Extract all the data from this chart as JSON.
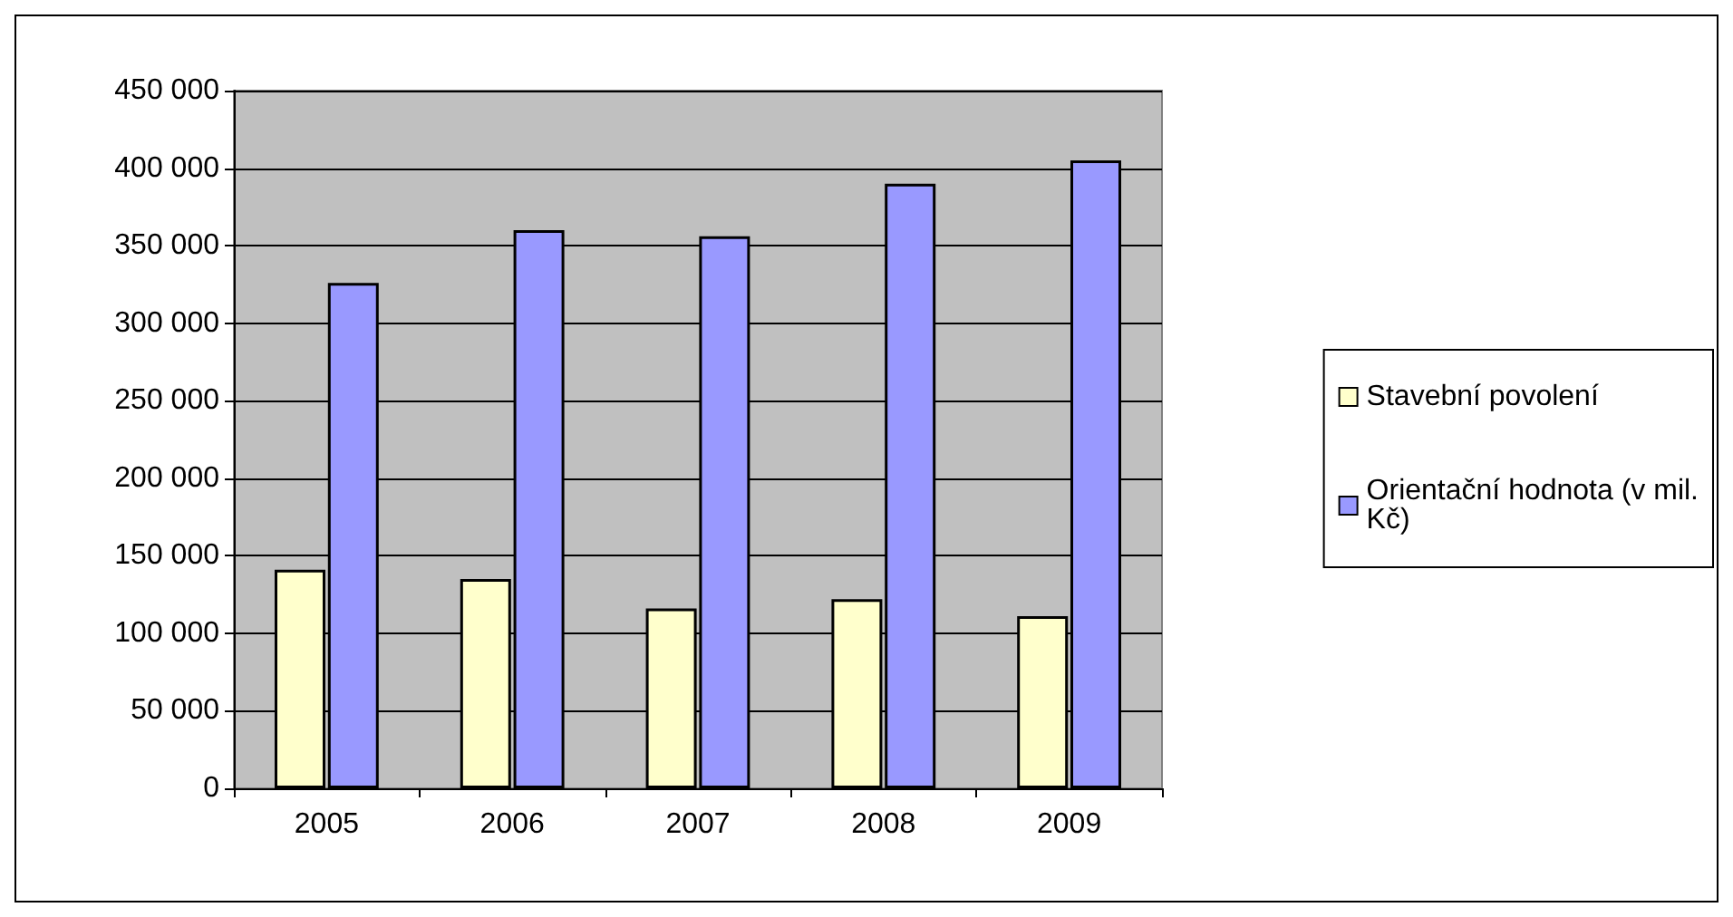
{
  "chart_data": {
    "type": "bar",
    "categories": [
      "2005",
      "2006",
      "2007",
      "2008",
      "2009"
    ],
    "series": [
      {
        "name": "Stavební povolení",
        "color": "#ffffcc",
        "values": [
          141000,
          135000,
          116000,
          122000,
          111000
        ]
      },
      {
        "name": "Orientační hodnota (v mil. Kč)",
        "color": "#9999ff",
        "values": [
          326000,
          360000,
          356000,
          390000,
          405000
        ]
      }
    ],
    "ylim": [
      0,
      450000
    ],
    "yticks": [
      {
        "value": 0,
        "label": "0"
      },
      {
        "value": 50000,
        "label": "50 000"
      },
      {
        "value": 100000,
        "label": "100 000"
      },
      {
        "value": 150000,
        "label": "150 000"
      },
      {
        "value": 200000,
        "label": "200 000"
      },
      {
        "value": 250000,
        "label": "250 000"
      },
      {
        "value": 300000,
        "label": "300 000"
      },
      {
        "value": 350000,
        "label": "350 000"
      },
      {
        "value": 400000,
        "label": "400 000"
      },
      {
        "value": 450000,
        "label": "450 000"
      }
    ],
    "grid": "y",
    "legend": "right"
  }
}
